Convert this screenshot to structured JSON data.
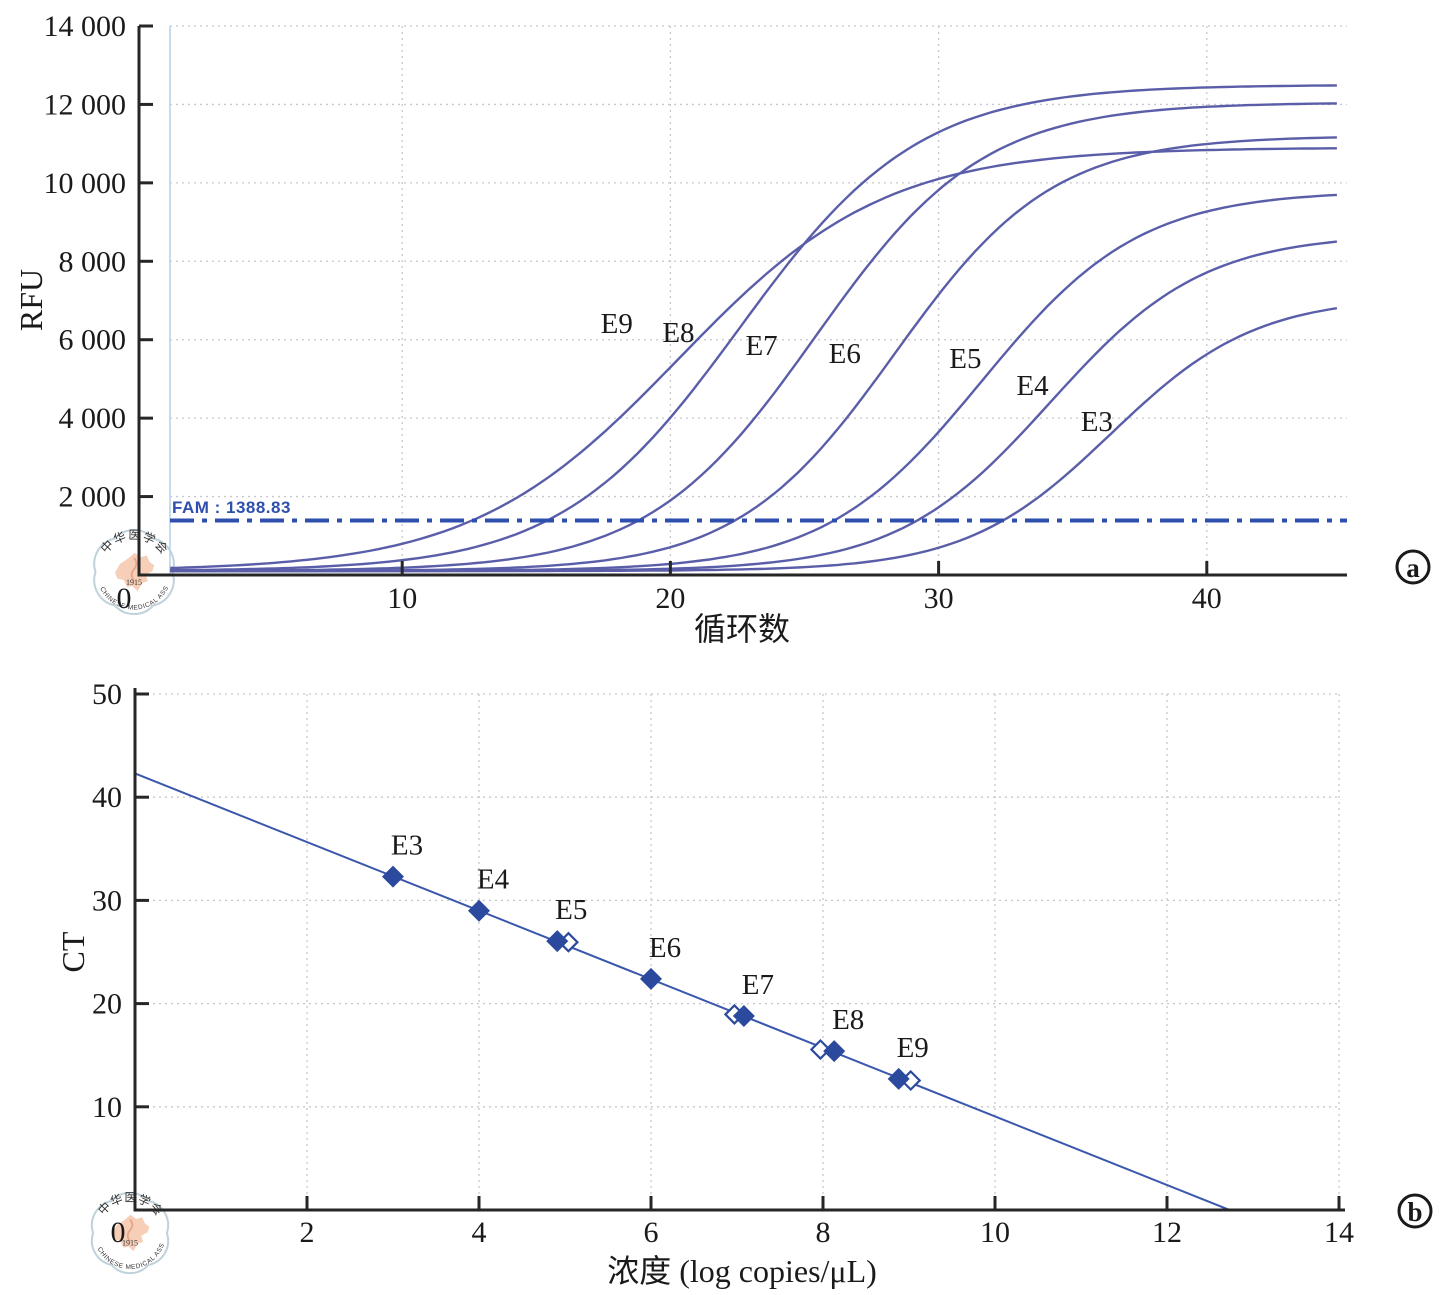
{
  "chart_data": [
    {
      "type": "line",
      "panel_label": "a",
      "xlabel": "循环数",
      "ylabel": "RFU",
      "xlim": [
        0,
        45
      ],
      "ylim": [
        0,
        14000
      ],
      "grid": "dotted",
      "xticks": [
        {
          "v": 0,
          "label": "0"
        },
        {
          "v": 10,
          "label": "10"
        },
        {
          "v": 20,
          "label": "20"
        },
        {
          "v": 30,
          "label": "30"
        },
        {
          "v": 40,
          "label": "40"
        }
      ],
      "yticks": [
        {
          "v": 2000,
          "label": "2 000"
        },
        {
          "v": 4000,
          "label": "4 000"
        },
        {
          "v": 6000,
          "label": "6 000"
        },
        {
          "v": 8000,
          "label": "8 000"
        },
        {
          "v": 10000,
          "label": "10 000"
        },
        {
          "v": 12000,
          "label": "12 000"
        },
        {
          "v": 14000,
          "label": "14 000"
        }
      ],
      "threshold": {
        "name": "FAM",
        "value": 1388.83,
        "label": "FAM : 1388.83"
      },
      "baseline_rfu": 100,
      "curve_start_cycle": 1.35,
      "curve_end_cycle": 45,
      "series": [
        {
          "name": "E9",
          "ct": 12.6,
          "plateau": 10800,
          "k": 0.26,
          "label_x": 18.0,
          "label_y": 6430
        },
        {
          "name": "E8",
          "ct": 15.4,
          "plateau": 12400,
          "k": 0.3,
          "label_x": 20.3,
          "label_y": 6200
        },
        {
          "name": "E7",
          "ct": 18.8,
          "plateau": 11950,
          "k": 0.32,
          "label_x": 23.4,
          "label_y": 5870
        },
        {
          "name": "E6",
          "ct": 22.4,
          "plateau": 11100,
          "k": 0.34,
          "label_x": 26.5,
          "label_y": 5660
        },
        {
          "name": "E5",
          "ct": 26.1,
          "plateau": 9700,
          "k": 0.34,
          "label_x": 31.0,
          "label_y": 5530
        },
        {
          "name": "E4",
          "ct": 29.2,
          "plateau": 8600,
          "k": 0.35,
          "label_x": 33.5,
          "label_y": 4850
        },
        {
          "name": "E3",
          "ct": 32.4,
          "plateau": 7000,
          "k": 0.37,
          "label_x": 35.9,
          "label_y": 3930
        }
      ]
    },
    {
      "type": "scatter",
      "panel_label": "b",
      "xlabel": "浓度 (log copies/μL)",
      "ylabel": "CT",
      "xlim": [
        0,
        14
      ],
      "ylim": [
        0,
        50
      ],
      "grid": "dotted",
      "xticks": [
        {
          "v": 0,
          "label": "0"
        },
        {
          "v": 2,
          "label": "2"
        },
        {
          "v": 4,
          "label": "4"
        },
        {
          "v": 6,
          "label": "6"
        },
        {
          "v": 8,
          "label": "8"
        },
        {
          "v": 10,
          "label": "10"
        },
        {
          "v": 12,
          "label": "12"
        },
        {
          "v": 14,
          "label": "14"
        }
      ],
      "yticks": [
        {
          "v": 10,
          "label": "10"
        },
        {
          "v": 20,
          "label": "20"
        },
        {
          "v": 30,
          "label": "30"
        },
        {
          "v": 40,
          "label": "40"
        },
        {
          "v": 50,
          "label": "50"
        }
      ],
      "regression": {
        "intercept": 42.3,
        "slope": -3.323,
        "x_start": 0,
        "x_end": 12.73
      },
      "points": [
        {
          "name": "E3",
          "x": 3.0,
          "ct": 32.3
        },
        {
          "name": "E4",
          "x": 4.0,
          "ct": 29.0
        },
        {
          "name": "E5",
          "x": 4.91,
          "ct": 26.05
        },
        {
          "name": "E6",
          "x": 6.0,
          "ct": 22.4
        },
        {
          "name": "E7",
          "x": 7.08,
          "ct": 18.8
        },
        {
          "name": "E8",
          "x": 8.13,
          "ct": 15.4
        },
        {
          "name": "E9",
          "x": 8.88,
          "ct": 12.7
        }
      ],
      "replicate_points": [
        {
          "name": "E5",
          "x": 5.04,
          "ct": 25.95
        },
        {
          "name": "E7",
          "x": 6.97,
          "ct": 18.95
        },
        {
          "name": "E8",
          "x": 7.97,
          "ct": 15.55
        },
        {
          "name": "E9",
          "x": 9.02,
          "ct": 12.55
        }
      ]
    }
  ],
  "watermark": {
    "org_cn": "中华医学会",
    "org_en": "CHINESE MEDICAL ASSOCIATION",
    "year": "1915"
  },
  "colors": {
    "curve": "#5a5ea9",
    "threshold": "#2e4fad",
    "marker": "#2b4a9e",
    "regression": "#3a57ad",
    "grid": "#c5c8ce",
    "axis": "#262626",
    "plot_edge": "#b8d4ea",
    "wm_ring": "#b9cdd6",
    "wm_map": "#f7c9b0",
    "wm_text": "#a6bcc0",
    "wm_year": "#e2a887",
    "wm_snake": "#d98f6f"
  }
}
